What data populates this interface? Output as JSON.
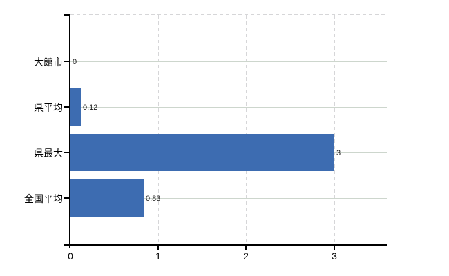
{
  "chart_data": {
    "type": "bar",
    "orientation": "horizontal",
    "title": "",
    "xlabel": "",
    "ylabel": "",
    "categories": [
      "大館市",
      "県平均",
      "県最大",
      "全国平均"
    ],
    "values": [
      0,
      0.12,
      3,
      0.83
    ],
    "value_labels": [
      "0",
      "0.12",
      "3",
      "0.83"
    ],
    "x_ticks": [
      0,
      1,
      2,
      3
    ],
    "x_tick_labels": [
      "0",
      "1",
      "2",
      "3"
    ],
    "xlim": [
      0,
      3.6
    ],
    "grid": true,
    "legend": false,
    "colors": {
      "bar": "#3d6cb1",
      "h_gridline": "#cdd6cd",
      "v_gridline": "#d6d6d8",
      "top_border_dashed": "#d6d6d8",
      "axis": "#000000",
      "tick_label": "#000000",
      "value_label": "#222222",
      "background": "#ffffff"
    }
  }
}
